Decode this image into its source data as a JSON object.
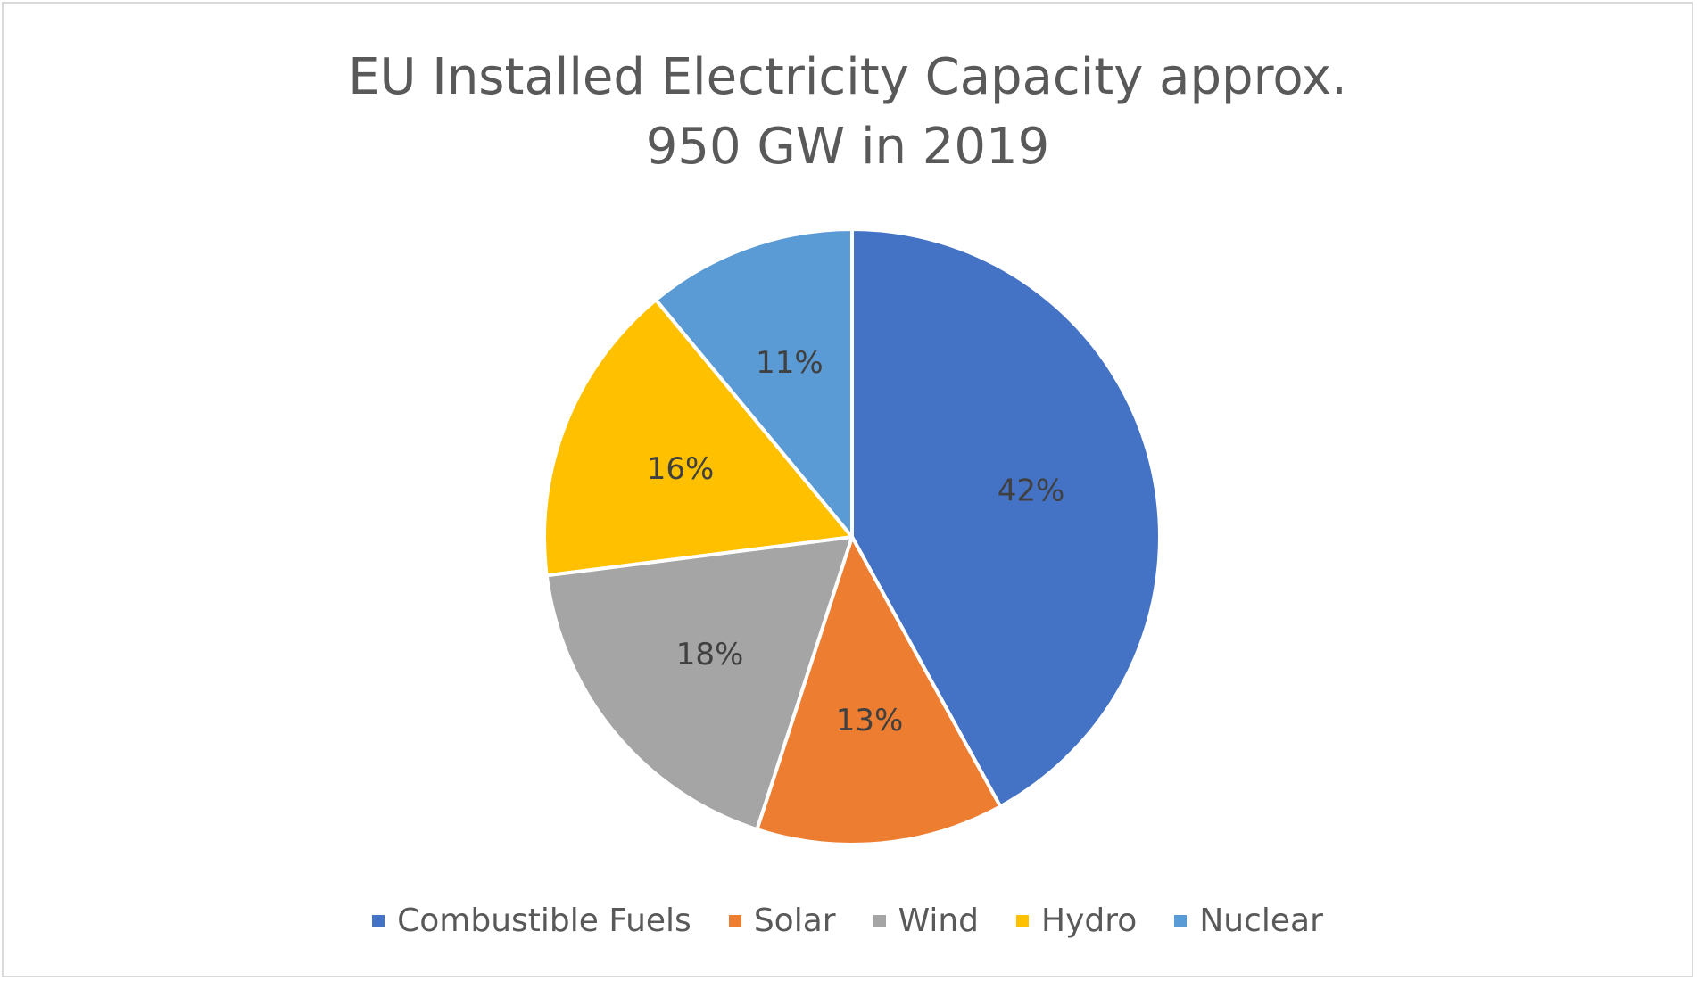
{
  "chart_data": {
    "type": "pie",
    "title": "EU Installed Electricity Capacity approx. 950 GW in 2019",
    "title_lines": [
      "EU Installed Electricity Capacity approx.",
      "950 GW in 2019"
    ],
    "categories": [
      "Combustible Fuels",
      "Solar",
      "Wind",
      "Hydro",
      "Nuclear"
    ],
    "values": [
      42,
      13,
      18,
      16,
      11
    ],
    "labels": [
      "42%",
      "13%",
      "18%",
      "16%",
      "11%"
    ],
    "colors": [
      "#4472c4",
      "#ed7d31",
      "#a5a5a5",
      "#ffc000",
      "#5b9bd5"
    ],
    "start_angle": "12 o'clock",
    "direction": "clockwise",
    "legend": {
      "position": "bottom"
    }
  }
}
